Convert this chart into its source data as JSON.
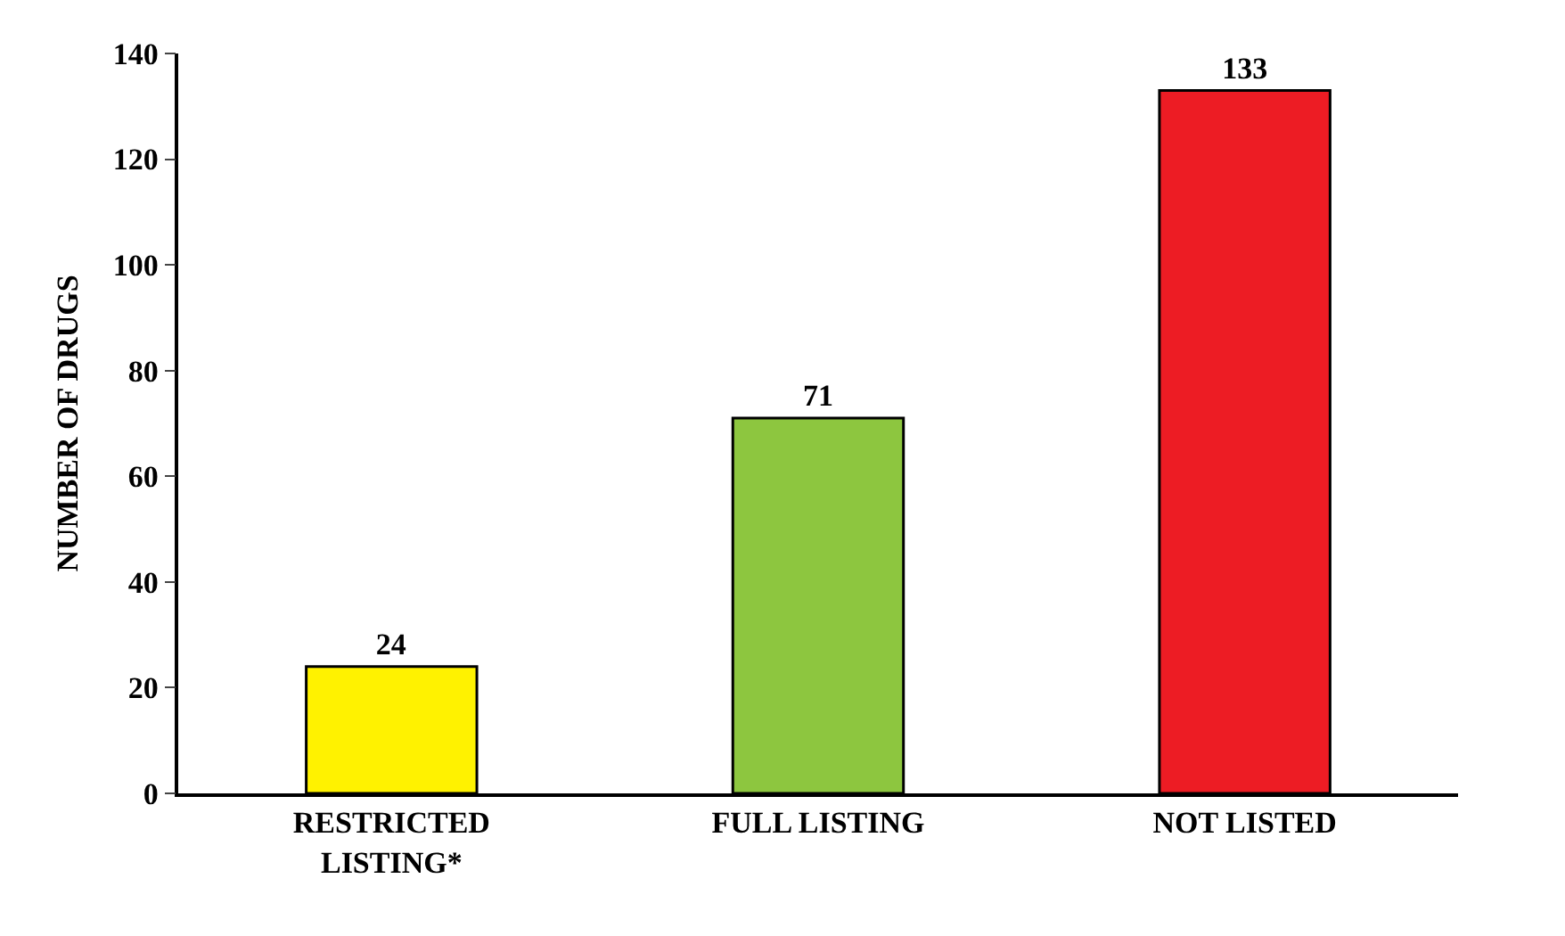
{
  "chart_data": {
    "type": "bar",
    "ylabel": "NUMBER OF DRUGS",
    "categories": [
      "RESTRICTED\nLISTING*",
      "FULL LISTING",
      "NOT LISTED"
    ],
    "values": [
      24,
      71,
      133
    ],
    "colors": [
      "#fff200",
      "#8dc63f",
      "#ed1c24"
    ],
    "ylim": [
      0,
      140
    ],
    "yticks": [
      0,
      20,
      40,
      60,
      80,
      100,
      120,
      140
    ],
    "data_labels": true
  }
}
